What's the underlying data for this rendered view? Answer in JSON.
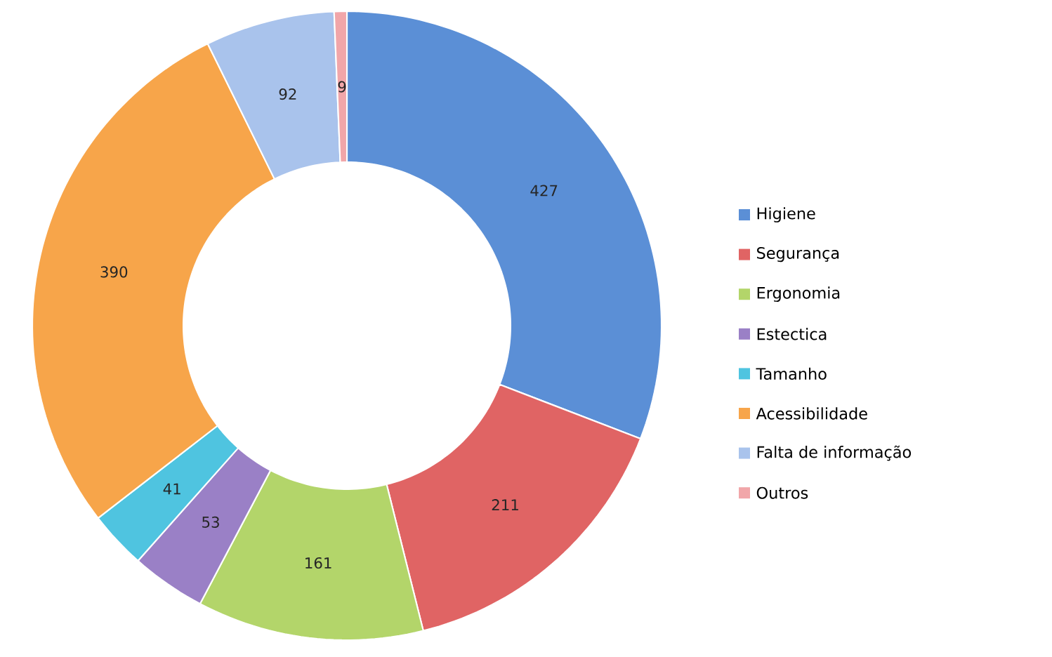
{
  "chart_data": {
    "type": "donut",
    "categories": [
      "Higiene",
      "Segurança",
      "Ergonomia",
      "Estectica",
      "Tamanho",
      "Acessibilidade",
      "Falta de informação",
      "Outros"
    ],
    "values": [
      427,
      211,
      161,
      53,
      41,
      390,
      92,
      9
    ],
    "colors": [
      "#5b8fd6",
      "#e06464",
      "#b3d56a",
      "#9a80c6",
      "#4fc4e0",
      "#f7a54a",
      "#a9c3ec",
      "#f1a6a9"
    ],
    "data_labels": true,
    "legend": "right"
  }
}
